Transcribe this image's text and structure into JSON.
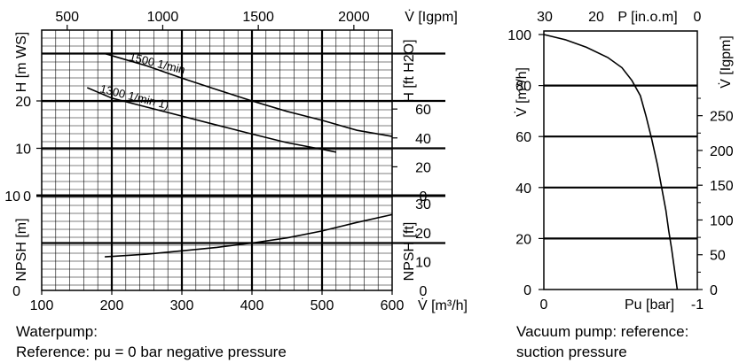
{
  "chart_data": [
    {
      "type": "line",
      "name": "waterpump-head",
      "x_unit_label": "V̇ [m³/h]",
      "x_ticks": [
        100,
        200,
        300,
        400,
        500,
        600
      ],
      "x2_unit_label": "V̇ [Igpm]",
      "x2_ticks": [
        500,
        1000,
        1500,
        2000
      ],
      "ylabel_left": "H [m WS]",
      "yticks_left": [
        0,
        10,
        20
      ],
      "ylabel_right": "H [ft H2O]",
      "yticks_right": [
        0,
        20,
        40,
        60
      ],
      "xlim": [
        100,
        600
      ],
      "ylim": [
        0,
        30
      ],
      "series": [
        {
          "name": "1500 1/min",
          "x": [
            190,
            250,
            300,
            350,
            400,
            450,
            500,
            550,
            600
          ],
          "y": [
            30.0,
            27.4,
            24.8,
            22.4,
            20.0,
            17.8,
            15.9,
            13.8,
            12.5
          ]
        },
        {
          "name": "1300 1/min 1)",
          "x": [
            165,
            200,
            250,
            300,
            350,
            400,
            450,
            500,
            520
          ],
          "y": [
            22.8,
            20.6,
            18.7,
            16.8,
            14.9,
            13.0,
            11.2,
            9.8,
            9.2
          ]
        }
      ]
    },
    {
      "type": "line",
      "name": "waterpump-npsh",
      "x_unit_label": "V̇ [m³/h]",
      "x_ticks": [
        100,
        200,
        300,
        400,
        500,
        600
      ],
      "ylabel_left": "NPSH [m]",
      "yticks_left": [
        0,
        10
      ],
      "ylabel_right": "NPSH [ft]",
      "yticks_right": [
        0,
        10,
        20,
        30
      ],
      "xlim": [
        100,
        600
      ],
      "ylim": [
        0,
        10
      ],
      "series": [
        {
          "name": "",
          "x": [
            190,
            250,
            300,
            350,
            400,
            450,
            500,
            550,
            600
          ],
          "y": [
            3.9,
            4.2,
            4.6,
            5.0,
            5.5,
            6.1,
            6.9,
            7.9,
            8.8
          ]
        }
      ]
    },
    {
      "type": "line",
      "name": "vacuum-pump",
      "ylabel_left": "V̇ [m³/h]",
      "yticks_left": [
        0,
        20,
        40,
        60,
        80,
        100
      ],
      "ylabel_right": "V̇ [Igpm]",
      "yticks_right": [
        0,
        50,
        100,
        150,
        200,
        250
      ],
      "x_bottom_ticks": [
        "0",
        "-1"
      ],
      "x_bottom_label": "Pu [bar]",
      "x_top_ticks": [
        "30",
        "20",
        "0"
      ],
      "x_top_label": "P [in.o.m]",
      "xlim": [
        0,
        -1
      ],
      "ylim": [
        0,
        100
      ],
      "series": [
        {
          "name": "",
          "x": [
            0,
            -0.15,
            -0.3,
            -0.45,
            -0.55,
            -0.62,
            -0.68,
            -0.72,
            -0.76,
            -0.8,
            -0.83,
            -0.86,
            -0.88,
            -0.9,
            -0.92,
            -0.94
          ],
          "y": [
            100,
            98,
            95,
            91,
            87,
            82,
            76,
            68,
            59,
            49,
            40,
            31,
            23,
            16,
            8,
            0
          ]
        }
      ]
    }
  ],
  "captions": {
    "left_line1": "Waterpump:",
    "left_line2": "Reference: pu = 0 bar  negative pressure",
    "right_line1": "Vacuum pump: reference:",
    "right_line2": "suction pressure"
  }
}
